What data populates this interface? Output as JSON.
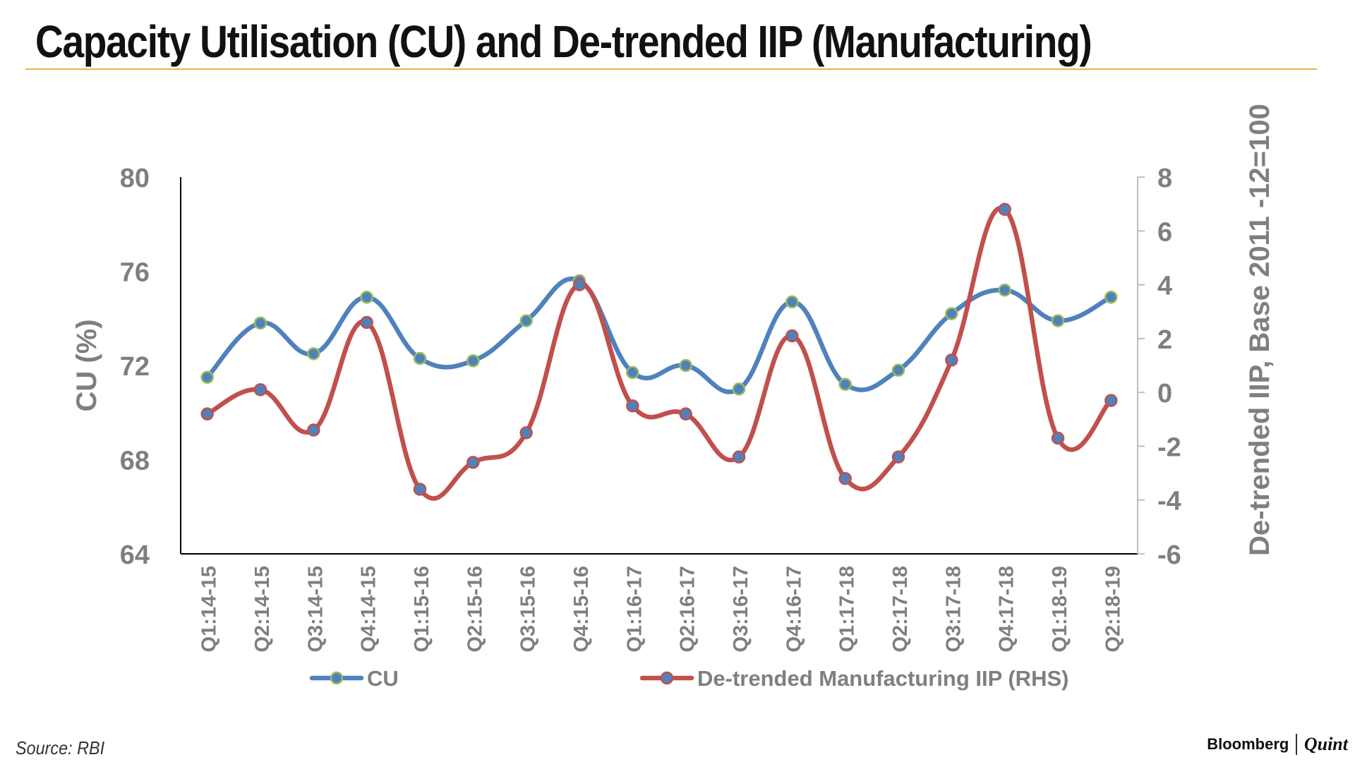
{
  "header": {
    "title": "Capacity Utilisation (CU) and De-trended IIP (Manufacturing)"
  },
  "footer": {
    "source": "Source: RBI",
    "brand_primary": "Bloomberg",
    "brand_secondary": "Quint"
  },
  "colors": {
    "cu_line": "#4f81bd",
    "cu_marker_edge": "#9bbb59",
    "iip_line": "#c0504d",
    "iip_marker_fill": "#4f81bd",
    "axis_text": "#7f7f7f",
    "title_rule": "#e7b54a"
  },
  "chart_data": {
    "type": "line",
    "title": "Capacity Utilisation (CU) and De-trended IIP (Manufacturing)",
    "categories": [
      "Q1:14-15",
      "Q2:14-15",
      "Q3:14-15",
      "Q4:14-15",
      "Q1:15-16",
      "Q2:15-16",
      "Q3:15-16",
      "Q4:15-16",
      "Q1:16-17",
      "Q2:16-17",
      "Q3:16-17",
      "Q4:16-17",
      "Q1:17-18",
      "Q2:17-18",
      "Q3:17-18",
      "Q4:17-18",
      "Q1:18-19",
      "Q2:18-19"
    ],
    "ylabel": "CU (%)",
    "ylabel_right": "De-trended IIP, Base 2011 -12=100",
    "ylim": [
      64,
      80
    ],
    "ylim_right": [
      -6,
      8
    ],
    "yticks": [
      "64",
      "68",
      "72",
      "76",
      "80"
    ],
    "yticks_right": [
      "-6",
      "-4",
      "-2",
      "0",
      "2",
      "4",
      "6",
      "8"
    ],
    "grid": false,
    "legend_position": "bottom",
    "series": [
      {
        "name": "CU",
        "axis": "left",
        "values": [
          71.5,
          73.8,
          72.5,
          74.9,
          72.3,
          72.2,
          73.9,
          75.6,
          71.7,
          72.0,
          71.0,
          74.7,
          71.2,
          71.8,
          74.2,
          75.2,
          73.9,
          74.9
        ]
      },
      {
        "name": "De-trended Manufacturing IIP (RHS)",
        "axis": "right",
        "values": [
          -0.8,
          0.1,
          -1.4,
          2.6,
          -3.6,
          -2.6,
          -1.5,
          4.0,
          -0.5,
          -0.8,
          -2.4,
          2.1,
          -3.2,
          -2.4,
          1.2,
          6.8,
          -1.7,
          -0.3
        ]
      }
    ]
  }
}
